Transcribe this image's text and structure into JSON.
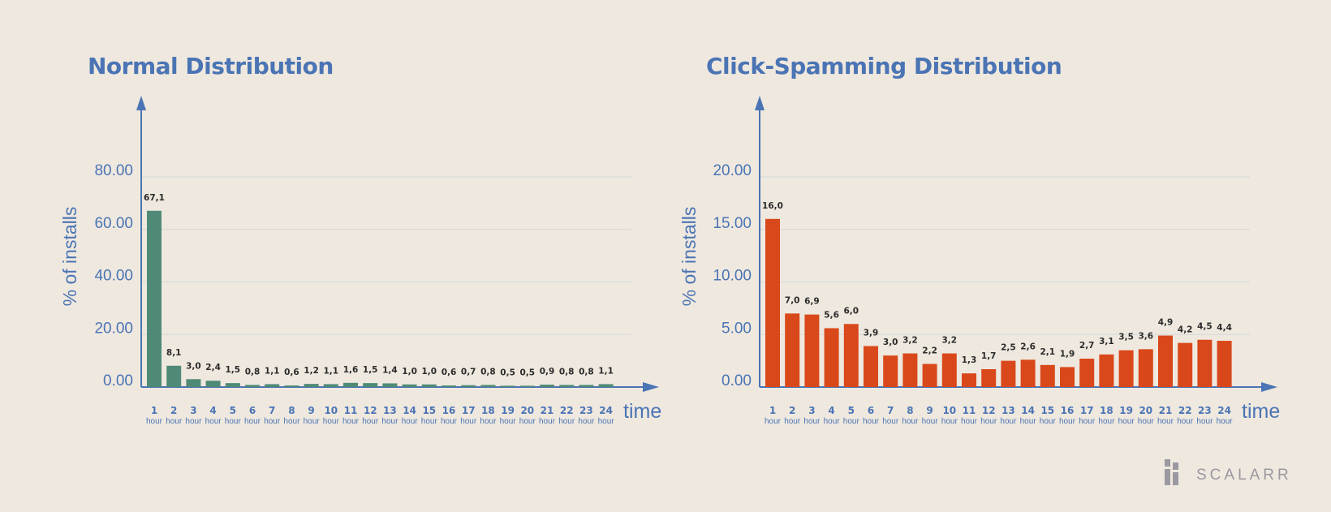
{
  "chart_data": [
    {
      "type": "bar",
      "title": "Normal Distribution",
      "ylabel": "% of installs",
      "xlabel": "time",
      "ylim": [
        0,
        80
      ],
      "yticks": [
        "0.00",
        "20.00",
        "40.00",
        "60.00",
        "80.00"
      ],
      "yticks_values": [
        0,
        20,
        40,
        60,
        80
      ],
      "x_unit": "hour",
      "categories": [
        "1",
        "2",
        "3",
        "4",
        "5",
        "6",
        "7",
        "8",
        "9",
        "10",
        "11",
        "12",
        "13",
        "14",
        "15",
        "16",
        "17",
        "18",
        "19",
        "20",
        "21",
        "22",
        "23",
        "24"
      ],
      "values": [
        67.1,
        8.1,
        3.0,
        2.4,
        1.5,
        0.8,
        1.1,
        0.6,
        1.2,
        1.1,
        1.6,
        1.5,
        1.4,
        1.0,
        1.0,
        0.6,
        0.7,
        0.8,
        0.5,
        0.5,
        0.9,
        0.8,
        0.8,
        1.1
      ],
      "labels": [
        "67,1",
        "8,1",
        "3,0",
        "2,4",
        "1,5",
        "0,8",
        "1,1",
        "0,6",
        "1,2",
        "1,1",
        "1,6",
        "1,5",
        "1,4",
        "1,0",
        "1,0",
        "0,6",
        "0,7",
        "0,8",
        "0,5",
        "0,5",
        "0,9",
        "0,8",
        "0,8",
        "1,1"
      ],
      "bar_color": "#4e8a76",
      "grid": true
    },
    {
      "type": "bar",
      "title": "Click-Spamming Distribution",
      "ylabel": "% of installs",
      "xlabel": "time",
      "ylim": [
        0,
        20
      ],
      "yticks": [
        "0.00",
        "5.00",
        "10.00",
        "15.00",
        "20.00"
      ],
      "yticks_values": [
        0,
        5,
        10,
        15,
        20
      ],
      "x_unit": "hour",
      "categories": [
        "1",
        "2",
        "3",
        "4",
        "5",
        "6",
        "7",
        "8",
        "9",
        "10",
        "11",
        "12",
        "13",
        "14",
        "15",
        "16",
        "17",
        "18",
        "19",
        "20",
        "21",
        "22",
        "23",
        "24"
      ],
      "values": [
        16.0,
        7.0,
        6.9,
        5.6,
        6.0,
        3.9,
        3.0,
        3.2,
        2.2,
        3.2,
        1.3,
        1.7,
        2.5,
        2.6,
        2.1,
        1.9,
        2.7,
        3.1,
        3.5,
        3.6,
        4.9,
        4.2,
        4.5,
        4.4
      ],
      "labels": [
        "16,0",
        "7,0",
        "6,9",
        "5,6",
        "6,0",
        "3,9",
        "3,0",
        "3,2",
        "2,2",
        "3,2",
        "1,3",
        "1,7",
        "2,5",
        "2,6",
        "2,1",
        "1,9",
        "2,7",
        "3,1",
        "3,5",
        "3,6",
        "4,9",
        "4,2",
        "4,5",
        "4,4"
      ],
      "bar_color": "#d9481a",
      "grid": true
    }
  ],
  "logo": {
    "text": "SCALARR",
    "color": "#9a98a0"
  },
  "colors": {
    "background": "#efe8df",
    "axis": "#4a74b4"
  }
}
